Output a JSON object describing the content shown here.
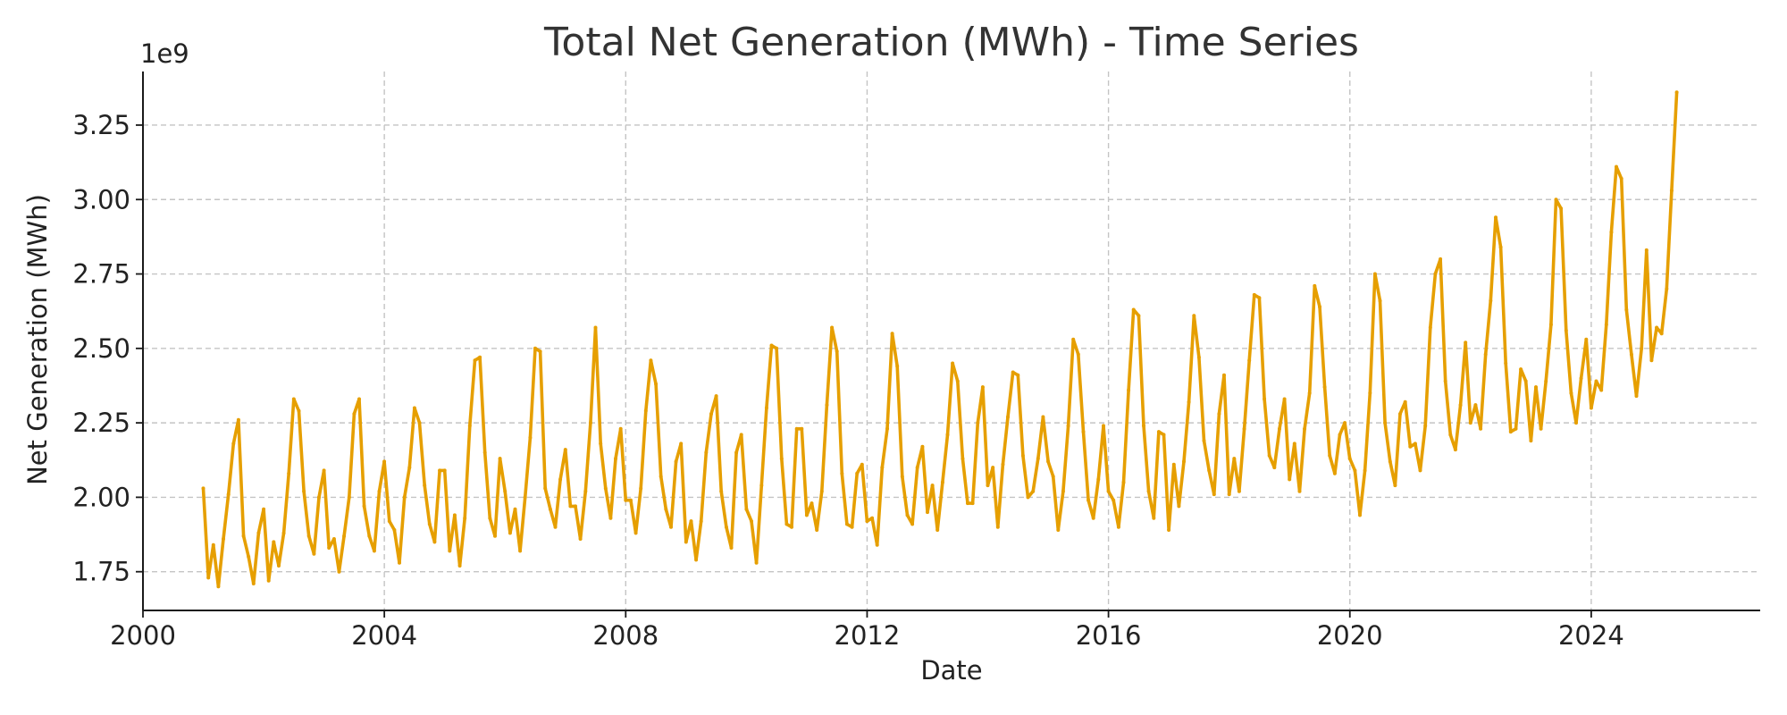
{
  "colors": {
    "line": "#E69F00",
    "grid": "#c4c4c4",
    "axis": "#1a1a1a",
    "text": "#222222"
  },
  "chart_data": {
    "type": "line",
    "title": "Total Net Generation (MWh) - Time Series",
    "xlabel": "Date",
    "ylabel": "Net Generation (MWh)",
    "y_offset_label": "1e9",
    "y_scale_multiplier": 1000000000,
    "x_range_years": [
      2000,
      2026.8
    ],
    "ylim": [
      1.62,
      3.43
    ],
    "x_ticks": [
      {
        "value": 2000,
        "label": "2000"
      },
      {
        "value": 2004,
        "label": "2004"
      },
      {
        "value": 2008,
        "label": "2008"
      },
      {
        "value": 2012,
        "label": "2012"
      },
      {
        "value": 2016,
        "label": "2016"
      },
      {
        "value": 2020,
        "label": "2020"
      },
      {
        "value": 2024,
        "label": "2024"
      }
    ],
    "y_ticks": [
      {
        "value": 1.75,
        "label": "1.75"
      },
      {
        "value": 2.0,
        "label": "2.00"
      },
      {
        "value": 2.25,
        "label": "2.25"
      },
      {
        "value": 2.5,
        "label": "2.50"
      },
      {
        "value": 2.75,
        "label": "2.75"
      },
      {
        "value": 3.0,
        "label": "3.00"
      },
      {
        "value": 3.25,
        "label": "3.25"
      }
    ],
    "grid": true,
    "legend": "none",
    "series": [
      {
        "start": "2001-01",
        "frequency": "monthly",
        "unit": "1e9 MWh",
        "values": [
          2.03,
          1.73,
          1.84,
          1.7,
          1.86,
          2.01,
          2.18,
          2.26,
          1.87,
          1.8,
          1.71,
          1.88,
          1.96,
          1.72,
          1.85,
          1.77,
          1.88,
          2.08,
          2.33,
          2.29,
          2.02,
          1.87,
          1.81,
          2.0,
          2.09,
          1.83,
          1.86,
          1.75,
          1.87,
          2.0,
          2.28,
          2.33,
          1.97,
          1.87,
          1.82,
          2.02,
          2.12,
          1.92,
          1.89,
          1.78,
          2.0,
          2.1,
          2.3,
          2.25,
          2.04,
          1.91,
          1.85,
          2.09,
          2.09,
          1.82,
          1.94,
          1.77,
          1.93,
          2.24,
          2.46,
          2.47,
          2.15,
          1.93,
          1.87,
          2.13,
          2.02,
          1.88,
          1.96,
          1.82,
          2.0,
          2.2,
          2.5,
          2.49,
          2.03,
          1.96,
          1.9,
          2.06,
          2.16,
          1.97,
          1.97,
          1.86,
          2.02,
          2.25,
          2.57,
          2.18,
          2.03,
          1.93,
          2.13,
          2.23,
          1.99,
          1.99,
          1.88,
          2.03,
          2.29,
          2.46,
          2.38,
          2.07,
          1.96,
          1.9,
          2.12,
          2.18,
          1.85,
          1.92,
          1.79,
          1.92,
          2.15,
          2.28,
          2.34,
          2.02,
          1.9,
          1.83,
          2.15,
          2.21,
          1.96,
          1.92,
          1.78,
          2.04,
          2.3,
          2.51,
          2.5,
          2.13,
          1.91,
          1.9,
          2.23,
          2.23,
          1.94,
          1.98,
          1.89,
          2.02,
          2.31,
          2.57,
          2.49,
          2.08,
          1.91,
          1.9,
          2.08,
          2.11,
          1.92,
          1.93,
          1.84,
          2.1,
          2.23,
          2.55,
          2.44,
          2.07,
          1.94,
          1.91,
          2.1,
          2.17,
          1.95,
          2.04,
          1.89,
          2.05,
          2.21,
          2.45,
          2.39,
          2.13,
          1.98,
          1.98,
          2.25,
          2.37,
          2.04,
          2.1,
          1.9,
          2.11,
          2.27,
          2.42,
          2.41,
          2.14,
          2.0,
          2.02,
          2.13,
          2.27,
          2.12,
          2.07,
          1.89,
          2.02,
          2.24,
          2.53,
          2.48,
          2.22,
          1.99,
          1.93,
          2.06,
          2.24,
          2.02,
          1.99,
          1.9,
          2.05,
          2.36,
          2.63,
          2.61,
          2.24,
          2.02,
          1.93,
          2.22,
          2.21,
          1.89,
          2.11,
          1.97,
          2.12,
          2.32,
          2.61,
          2.47,
          2.19,
          2.09,
          2.01,
          2.28,
          2.41,
          2.01,
          2.13,
          2.02,
          2.23,
          2.46,
          2.68,
          2.67,
          2.33,
          2.14,
          2.1,
          2.23,
          2.33,
          2.06,
          2.18,
          2.02,
          2.23,
          2.35,
          2.71,
          2.64,
          2.37,
          2.14,
          2.08,
          2.21,
          2.25,
          2.13,
          2.09,
          1.94,
          2.09,
          2.35,
          2.75,
          2.66,
          2.25,
          2.12,
          2.04,
          2.28,
          2.32,
          2.17,
          2.18,
          2.09,
          2.24,
          2.57,
          2.75,
          2.8,
          2.39,
          2.21,
          2.16,
          2.31,
          2.52,
          2.25,
          2.31,
          2.23,
          2.48,
          2.66,
          2.94,
          2.84,
          2.45,
          2.22,
          2.23,
          2.43,
          2.39,
          2.19,
          2.37,
          2.23,
          2.39,
          2.58,
          3.0,
          2.97,
          2.56,
          2.35,
          2.25,
          2.4,
          2.53,
          2.3,
          2.39,
          2.36,
          2.58,
          2.89,
          3.11,
          3.07,
          2.63,
          2.48,
          2.34,
          2.5,
          2.83,
          2.46,
          2.57,
          2.55,
          2.7,
          3.03,
          3.36
        ]
      }
    ]
  }
}
